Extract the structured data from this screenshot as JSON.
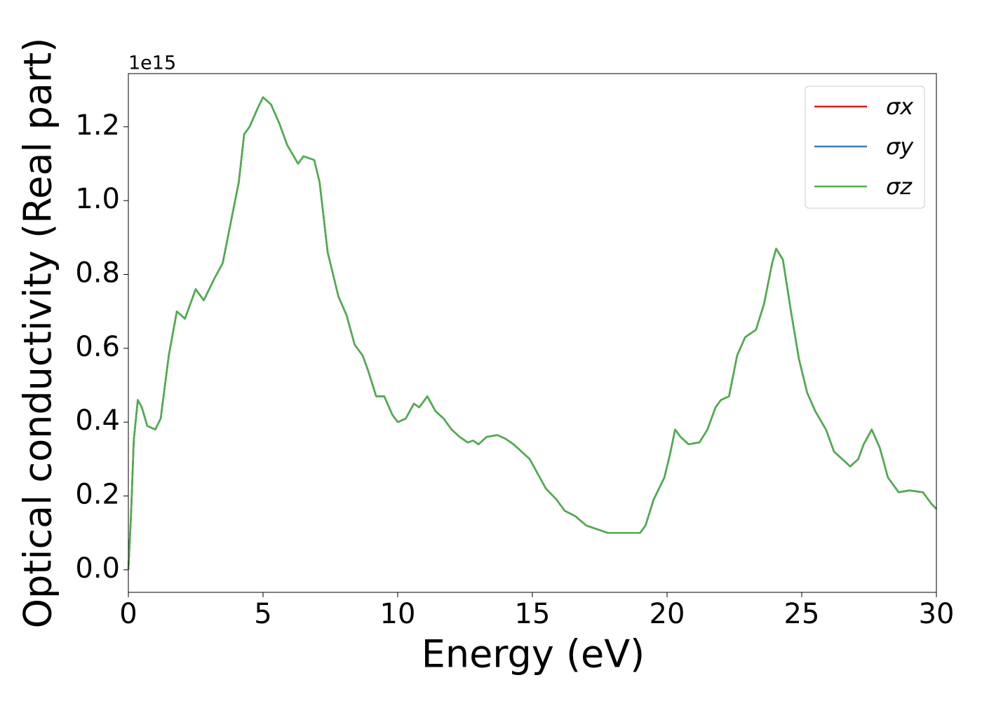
{
  "chart_data": {
    "type": "line",
    "xlabel": "Energy (eV)",
    "ylabel": "Optical conductivity (Real part)",
    "y_offset_label": "1e15",
    "x": [
      0,
      0.1,
      0.2,
      0.35,
      0.5,
      0.7,
      1.0,
      1.2,
      1.5,
      1.8,
      2.1,
      2.5,
      2.8,
      3.0,
      3.2,
      3.5,
      3.8,
      4.1,
      4.3,
      4.5,
      4.8,
      5.0,
      5.3,
      5.6,
      5.9,
      6.3,
      6.5,
      6.9,
      7.1,
      7.4,
      7.8,
      8.1,
      8.4,
      8.7,
      8.9,
      9.2,
      9.5,
      9.8,
      10.0,
      10.3,
      10.6,
      10.8,
      11.1,
      11.4,
      11.7,
      12.0,
      12.3,
      12.6,
      12.8,
      13.0,
      13.3,
      13.7,
      14.0,
      14.3,
      14.6,
      14.9,
      15.2,
      15.5,
      15.9,
      16.2,
      16.6,
      17.0,
      17.4,
      17.8,
      18.2,
      18.6,
      19.0,
      19.2,
      19.5,
      19.9,
      20.1,
      20.3,
      20.5,
      20.8,
      21.2,
      21.5,
      21.8,
      22.0,
      22.3,
      22.6,
      22.9,
      23.3,
      23.6,
      23.9,
      24.05,
      24.3,
      24.6,
      24.9,
      25.2,
      25.5,
      25.9,
      26.2,
      26.5,
      26.8,
      27.1,
      27.3,
      27.6,
      27.9,
      28.2,
      28.6,
      29.0,
      29.5,
      29.8,
      30.0
    ],
    "series": [
      {
        "name": "σx",
        "color": "#e41a1c",
        "values": [
          0.0,
          0.15,
          0.35,
          0.46,
          0.44,
          0.39,
          0.38,
          0.41,
          0.58,
          0.7,
          0.68,
          0.76,
          0.73,
          0.76,
          0.79,
          0.83,
          0.94,
          1.05,
          1.18,
          1.2,
          1.25,
          1.28,
          1.26,
          1.21,
          1.15,
          1.1,
          1.12,
          1.11,
          1.05,
          0.86,
          0.74,
          0.69,
          0.61,
          0.58,
          0.54,
          0.47,
          0.47,
          0.42,
          0.4,
          0.41,
          0.45,
          0.44,
          0.47,
          0.43,
          0.41,
          0.38,
          0.36,
          0.345,
          0.35,
          0.34,
          0.36,
          0.365,
          0.355,
          0.34,
          0.32,
          0.3,
          0.26,
          0.22,
          0.19,
          0.16,
          0.145,
          0.12,
          0.11,
          0.1,
          0.1,
          0.1,
          0.1,
          0.12,
          0.19,
          0.25,
          0.31,
          0.38,
          0.36,
          0.34,
          0.345,
          0.38,
          0.44,
          0.46,
          0.47,
          0.58,
          0.63,
          0.65,
          0.72,
          0.83,
          0.87,
          0.84,
          0.7,
          0.57,
          0.48,
          0.43,
          0.38,
          0.32,
          0.3,
          0.28,
          0.3,
          0.34,
          0.38,
          0.33,
          0.25,
          0.21,
          0.215,
          0.21,
          0.18,
          0.165
        ]
      },
      {
        "name": "σy",
        "color": "#377eb8",
        "values": [
          0.0,
          0.15,
          0.35,
          0.46,
          0.44,
          0.39,
          0.38,
          0.41,
          0.58,
          0.7,
          0.68,
          0.76,
          0.73,
          0.76,
          0.79,
          0.83,
          0.94,
          1.05,
          1.18,
          1.2,
          1.25,
          1.28,
          1.26,
          1.21,
          1.15,
          1.1,
          1.12,
          1.11,
          1.05,
          0.86,
          0.74,
          0.69,
          0.61,
          0.58,
          0.54,
          0.47,
          0.47,
          0.42,
          0.4,
          0.41,
          0.45,
          0.44,
          0.47,
          0.43,
          0.41,
          0.38,
          0.36,
          0.345,
          0.35,
          0.34,
          0.36,
          0.365,
          0.355,
          0.34,
          0.32,
          0.3,
          0.26,
          0.22,
          0.19,
          0.16,
          0.145,
          0.12,
          0.11,
          0.1,
          0.1,
          0.1,
          0.1,
          0.12,
          0.19,
          0.25,
          0.31,
          0.38,
          0.36,
          0.34,
          0.345,
          0.38,
          0.44,
          0.46,
          0.47,
          0.58,
          0.63,
          0.65,
          0.72,
          0.83,
          0.87,
          0.84,
          0.7,
          0.57,
          0.48,
          0.43,
          0.38,
          0.32,
          0.3,
          0.28,
          0.3,
          0.34,
          0.38,
          0.33,
          0.25,
          0.21,
          0.215,
          0.21,
          0.18,
          0.165
        ]
      },
      {
        "name": "σz",
        "color": "#4daf4a",
        "values": [
          0.0,
          0.15,
          0.35,
          0.46,
          0.44,
          0.39,
          0.38,
          0.41,
          0.58,
          0.7,
          0.68,
          0.76,
          0.73,
          0.76,
          0.79,
          0.83,
          0.94,
          1.05,
          1.18,
          1.2,
          1.25,
          1.28,
          1.26,
          1.21,
          1.15,
          1.1,
          1.12,
          1.11,
          1.05,
          0.86,
          0.74,
          0.69,
          0.61,
          0.58,
          0.54,
          0.47,
          0.47,
          0.42,
          0.4,
          0.41,
          0.45,
          0.44,
          0.47,
          0.43,
          0.41,
          0.38,
          0.36,
          0.345,
          0.35,
          0.34,
          0.36,
          0.365,
          0.355,
          0.34,
          0.32,
          0.3,
          0.26,
          0.22,
          0.19,
          0.16,
          0.145,
          0.12,
          0.11,
          0.1,
          0.1,
          0.1,
          0.1,
          0.12,
          0.19,
          0.25,
          0.31,
          0.38,
          0.36,
          0.34,
          0.345,
          0.38,
          0.44,
          0.46,
          0.47,
          0.58,
          0.63,
          0.65,
          0.72,
          0.83,
          0.87,
          0.84,
          0.7,
          0.57,
          0.48,
          0.43,
          0.38,
          0.32,
          0.3,
          0.28,
          0.3,
          0.34,
          0.38,
          0.33,
          0.25,
          0.21,
          0.215,
          0.21,
          0.18,
          0.165
        ]
      }
    ],
    "xlim": [
      0,
      30
    ],
    "xticks": [
      0,
      5,
      10,
      15,
      20,
      25,
      30
    ],
    "ylim": [
      -0.061,
      1.344
    ],
    "yticks": [
      {
        "value": 0,
        "label": "0.0"
      },
      {
        "value": 0.2,
        "label": "0.2"
      },
      {
        "value": 0.4,
        "label": "0.4"
      },
      {
        "value": 0.6,
        "label": "0.6"
      },
      {
        "value": 0.8,
        "label": "0.8"
      },
      {
        "value": 1.0,
        "label": "1.0"
      },
      {
        "value": 1.2,
        "label": "1.2"
      }
    ],
    "grid": false,
    "legend": "upper right"
  }
}
